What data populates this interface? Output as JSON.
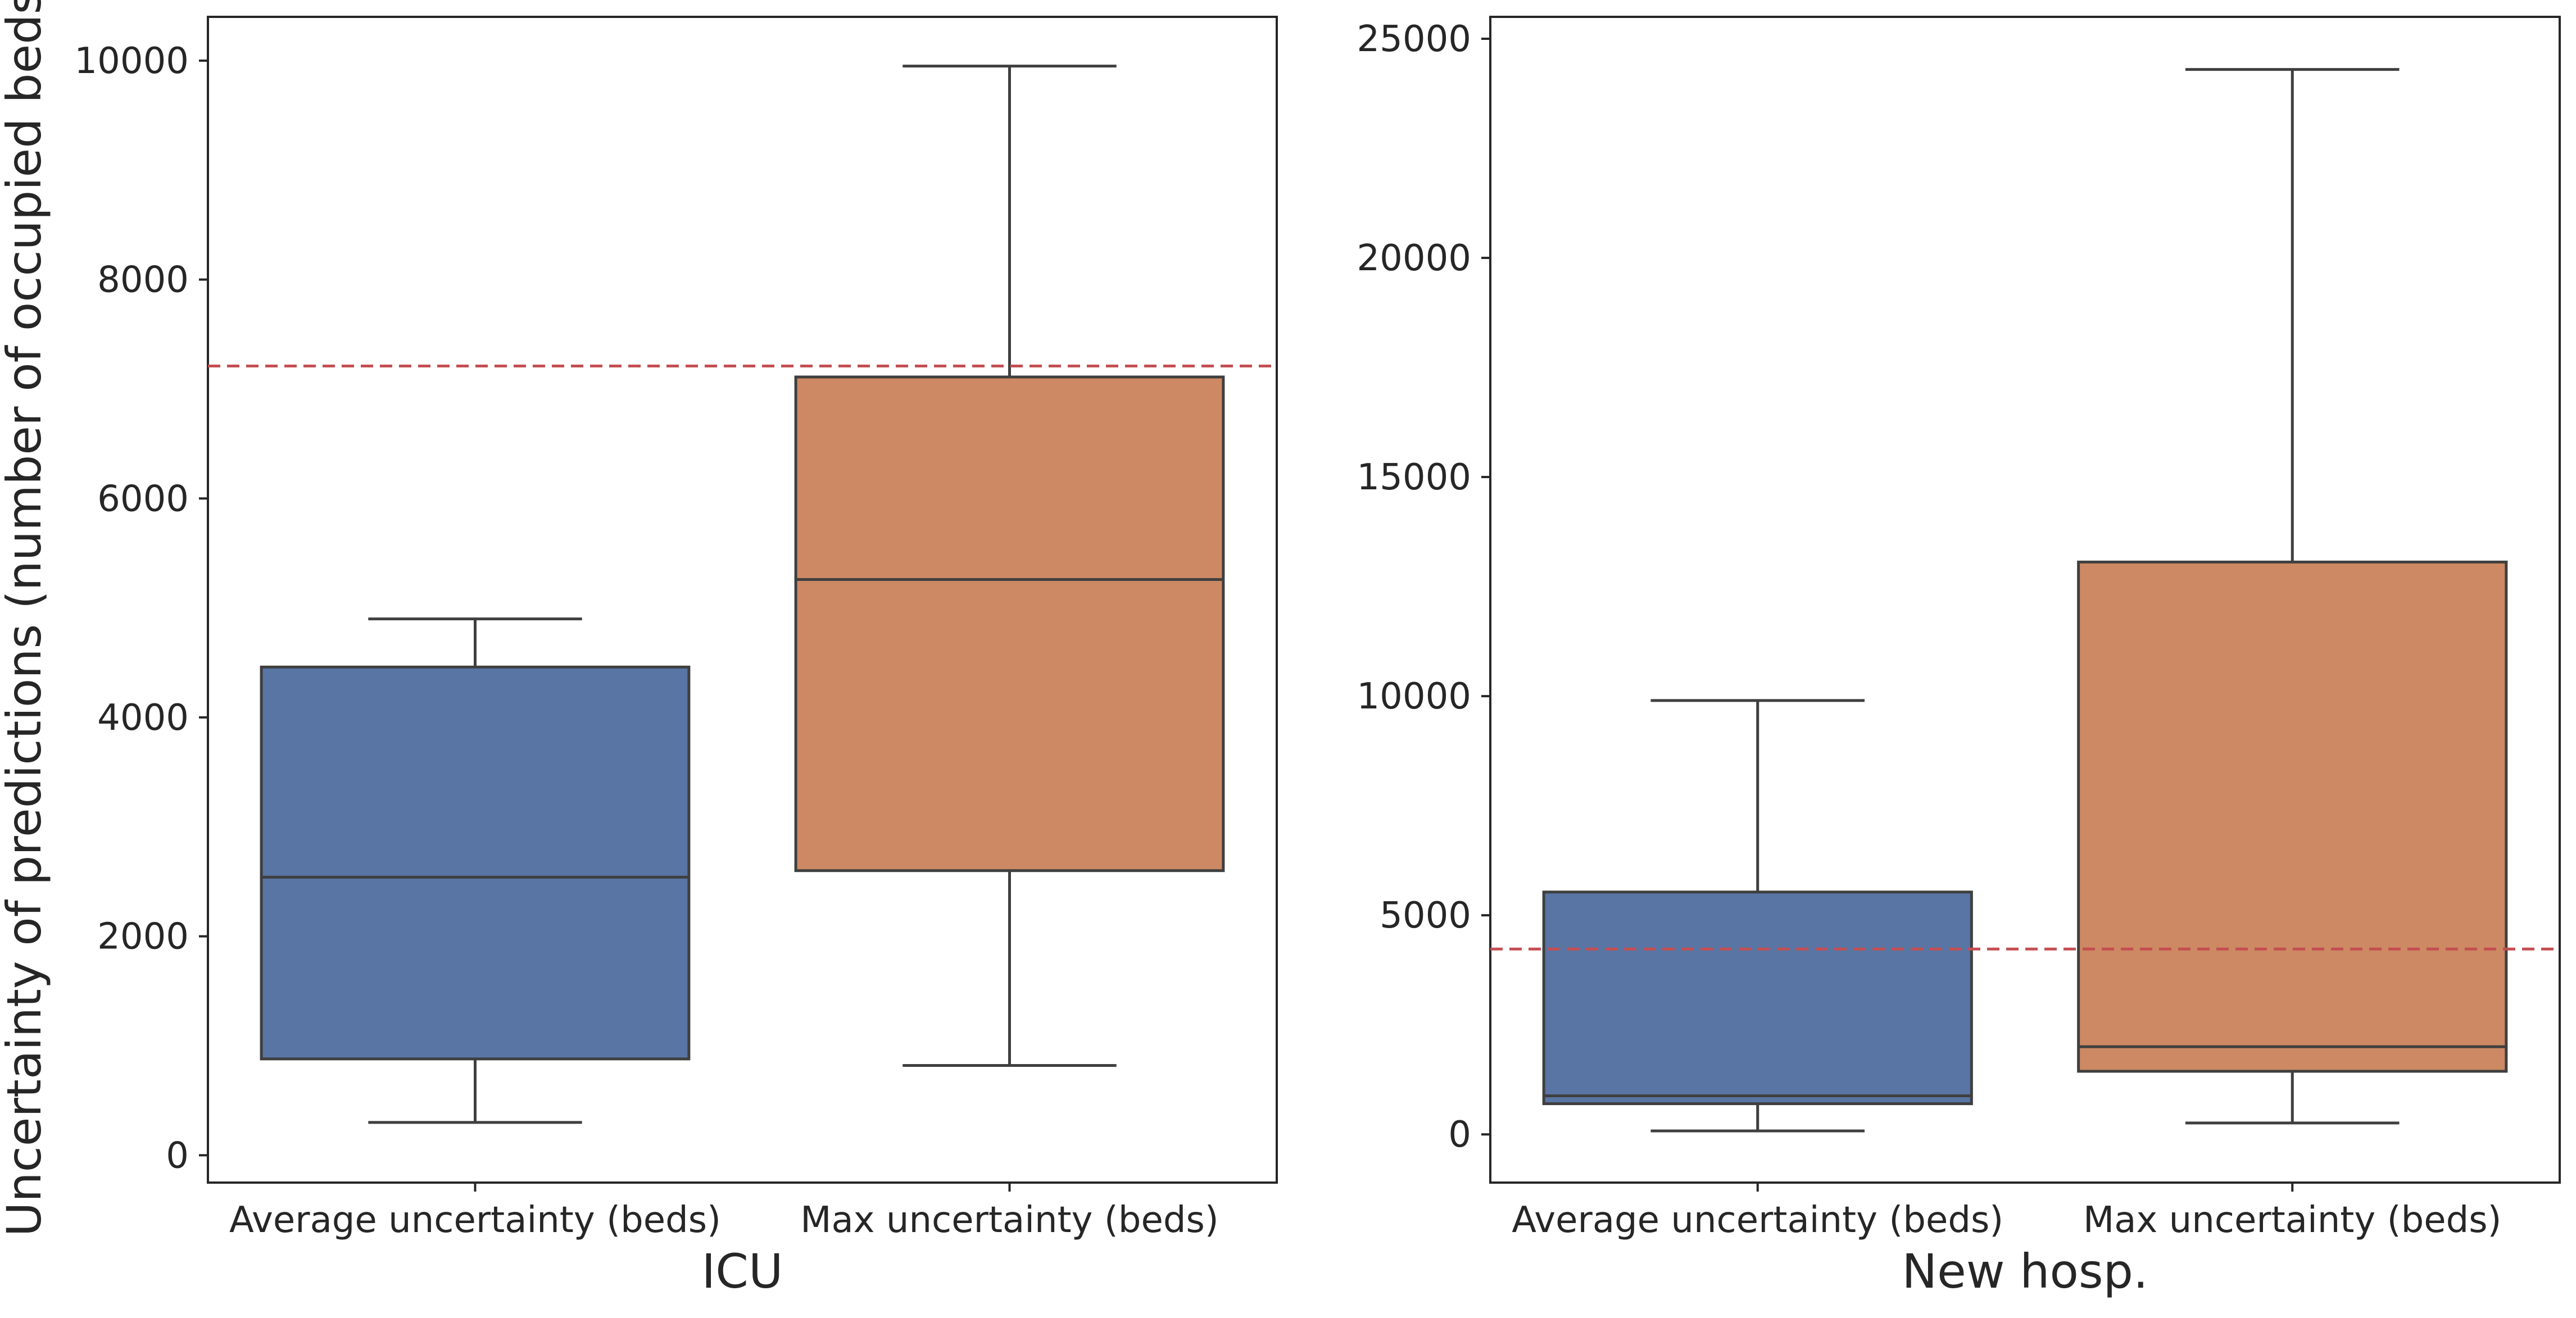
{
  "chart_data": [
    {
      "type": "box",
      "xlabel": "ICU",
      "ylabel": "Uncertainty of predictions (number of occupied beds)",
      "ylim": [
        -250,
        10400
      ],
      "yticks": [
        0,
        2000,
        4000,
        6000,
        8000,
        10000
      ],
      "categories": [
        "Average uncertainty (beds)",
        "Max uncertainty (beds)"
      ],
      "boxes": [
        {
          "category": "Average uncertainty (beds)",
          "whisker_low": 300,
          "q1": 880,
          "median": 2540,
          "q3": 4460,
          "whisker_high": 4900,
          "color": "#5875a4"
        },
        {
          "category": "Max uncertainty (beds)",
          "whisker_low": 820,
          "q1": 2600,
          "median": 5260,
          "q3": 7110,
          "whisker_high": 9950,
          "color": "#cc8963"
        }
      ],
      "reference_line": {
        "value": 7210,
        "color": "#c44e52",
        "style": "dashed"
      }
    },
    {
      "type": "box",
      "xlabel": "New hosp.",
      "ylabel": "",
      "ylim": [
        -1100,
        25500
      ],
      "yticks": [
        0,
        5000,
        10000,
        15000,
        20000,
        25000
      ],
      "categories": [
        "Average uncertainty (beds)",
        "Max uncertainty (beds)"
      ],
      "boxes": [
        {
          "category": "Average uncertainty (beds)",
          "whisker_low": 80,
          "q1": 700,
          "median": 880,
          "q3": 5530,
          "whisker_high": 9900,
          "color": "#5875a4"
        },
        {
          "category": "Max uncertainty (beds)",
          "whisker_low": 260,
          "q1": 1440,
          "median": 2000,
          "q3": 13060,
          "whisker_high": 24300,
          "color": "#cc8963"
        }
      ],
      "reference_line": {
        "value": 4230,
        "color": "#c44e52",
        "style": "dashed"
      }
    }
  ],
  "style": {
    "box_edge": "#3f3f3f",
    "frame": "#262626"
  }
}
